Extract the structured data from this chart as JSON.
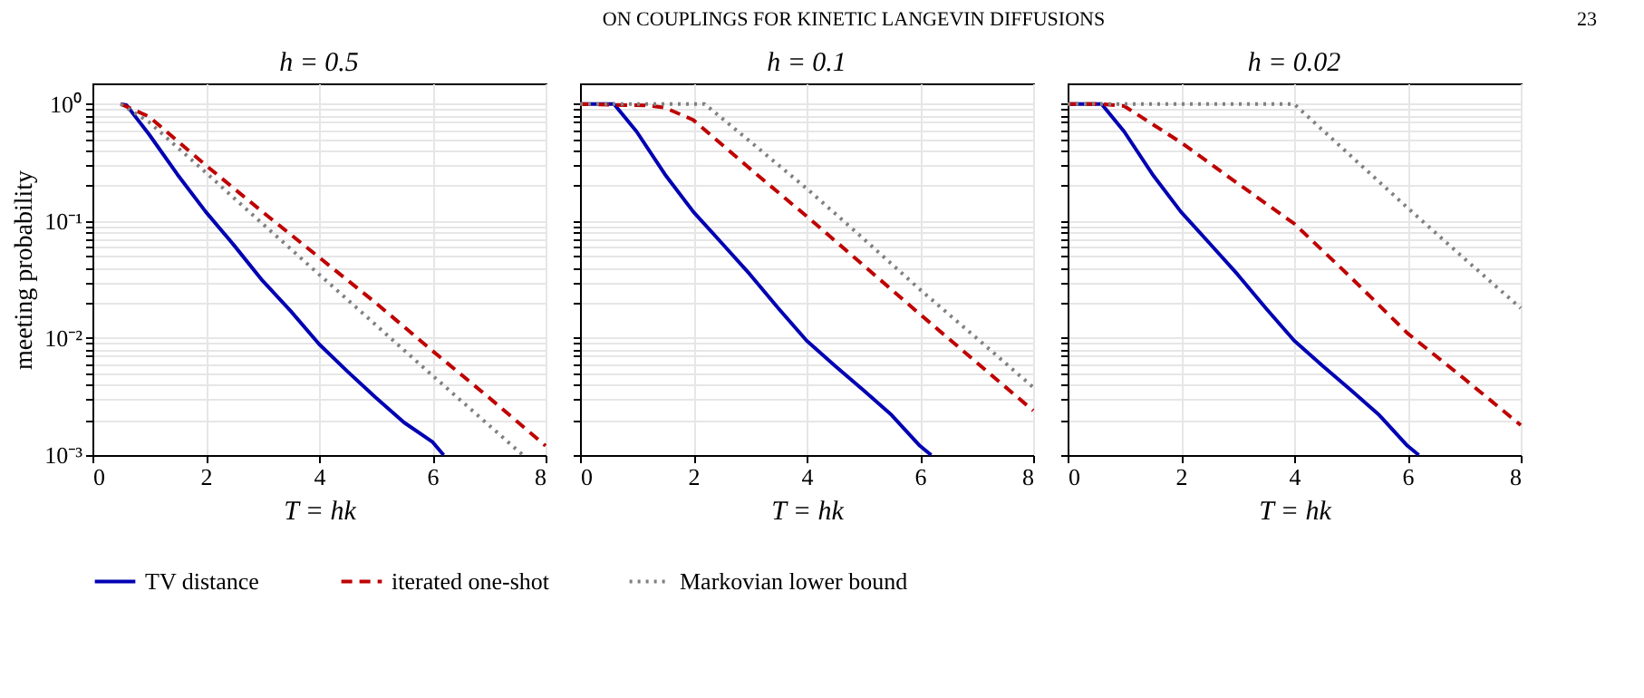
{
  "chart_data": [
    {
      "type": "line",
      "title": "h = 0.5",
      "xlabel": "T = hk",
      "ylabel": "meeting probability",
      "log": true,
      "grid": true,
      "legend": "bottom",
      "annotations": [
        "ON COUPLINGS FOR KINETIC LANGEVIN DIFFUSIONS",
        "23"
      ],
      "xlim": [
        0,
        8
      ],
      "xticks": [
        0,
        2,
        4,
        6,
        8
      ],
      "ylim": [
        0.001,
        1.5
      ],
      "yticks": [
        {
          "value": 0.001,
          "label": "10⁻³"
        },
        {
          "value": 0.002,
          "label": null
        },
        {
          "value": 0.003,
          "label": null
        },
        {
          "value": 0.004,
          "label": null
        },
        {
          "value": 0.005,
          "label": null
        },
        {
          "value": 0.006,
          "label": null
        },
        {
          "value": 0.007,
          "label": null
        },
        {
          "value": 0.008,
          "label": null
        },
        {
          "value": 0.009,
          "label": null
        },
        {
          "value": 0.01,
          "label": "10⁻²"
        },
        {
          "value": 0.02,
          "label": null
        },
        {
          "value": 0.03,
          "label": null
        },
        {
          "value": 0.04,
          "label": null
        },
        {
          "value": 0.05,
          "label": null
        },
        {
          "value": 0.06,
          "label": null
        },
        {
          "value": 0.07,
          "label": null
        },
        {
          "value": 0.08,
          "label": null
        },
        {
          "value": 0.09,
          "label": null
        },
        {
          "value": 0.1,
          "label": "10⁻¹"
        },
        {
          "value": 0.2,
          "label": null
        },
        {
          "value": 0.3,
          "label": null
        },
        {
          "value": 0.4,
          "label": null
        },
        {
          "value": 0.5,
          "label": null
        },
        {
          "value": 0.6,
          "label": null
        },
        {
          "value": 0.7,
          "label": null
        },
        {
          "value": 0.8,
          "label": null
        },
        {
          "value": 0.9,
          "label": null
        },
        {
          "value": 1,
          "label": "10⁰"
        }
      ],
      "series": [
        {
          "name": "TV distance",
          "color": "#0000b3",
          "line_style": "solid",
          "x": [
            0.5,
            0.6,
            1,
            1.5,
            2,
            2.5,
            3,
            3.5,
            4,
            4.5,
            5,
            5.5,
            6,
            6.2
          ],
          "values": [
            1,
            0.98,
            0.55,
            0.25,
            0.12,
            0.062,
            0.031,
            0.017,
            0.0089,
            0.0052,
            0.0031,
            0.0019,
            0.0013,
            0.001
          ]
        },
        {
          "name": "iterated one-shot",
          "color": "#bf0000",
          "line_style": "dashed",
          "x": [
            0.5,
            1,
            2,
            3,
            4,
            5,
            6,
            7,
            8
          ],
          "values": [
            1,
            0.78,
            0.3,
            0.12,
            0.049,
            0.02,
            0.0078,
            0.0031,
            0.0012
          ]
        },
        {
          "name": "Markovian lower bound",
          "color": "#808080",
          "line_style": "dotted",
          "x": [
            0.5,
            1,
            2,
            3,
            4,
            5,
            6,
            7,
            7.6
          ],
          "values": [
            1,
            0.7,
            0.26,
            0.095,
            0.035,
            0.013,
            0.0048,
            0.0018,
            0.001
          ]
        }
      ]
    },
    {
      "type": "line",
      "title": "h = 0.1",
      "xlabel": "T = hk",
      "log": true,
      "grid": true,
      "tick_labels": "x",
      "xlim": [
        0,
        8
      ],
      "xticks": [
        0,
        2,
        4,
        6,
        8
      ],
      "ylim": [
        0.001,
        1.5
      ],
      "yticks": [
        {
          "value": 0.001,
          "label": null
        },
        {
          "value": 0.002,
          "label": null
        },
        {
          "value": 0.003,
          "label": null
        },
        {
          "value": 0.004,
          "label": null
        },
        {
          "value": 0.005,
          "label": null
        },
        {
          "value": 0.006,
          "label": null
        },
        {
          "value": 0.007,
          "label": null
        },
        {
          "value": 0.008,
          "label": null
        },
        {
          "value": 0.009,
          "label": null
        },
        {
          "value": 0.01,
          "label": null
        },
        {
          "value": 0.02,
          "label": null
        },
        {
          "value": 0.03,
          "label": null
        },
        {
          "value": 0.04,
          "label": null
        },
        {
          "value": 0.05,
          "label": null
        },
        {
          "value": 0.06,
          "label": null
        },
        {
          "value": 0.07,
          "label": null
        },
        {
          "value": 0.08,
          "label": null
        },
        {
          "value": 0.09,
          "label": null
        },
        {
          "value": 0.1,
          "label": null
        },
        {
          "value": 0.2,
          "label": null
        },
        {
          "value": 0.3,
          "label": null
        },
        {
          "value": 0.4,
          "label": null
        },
        {
          "value": 0.5,
          "label": null
        },
        {
          "value": 0.6,
          "label": null
        },
        {
          "value": 0.7,
          "label": null
        },
        {
          "value": 0.8,
          "label": null
        },
        {
          "value": 0.9,
          "label": null
        },
        {
          "value": 1,
          "label": null
        }
      ],
      "series": [
        {
          "name": "TV distance",
          "color": "#0000b3",
          "line_style": "solid",
          "x": [
            0,
            0.6,
            1,
            1.5,
            2,
            2.5,
            3,
            3.5,
            4,
            4.5,
            5,
            5.5,
            6,
            6.2
          ],
          "values": [
            1,
            1,
            0.58,
            0.25,
            0.12,
            0.065,
            0.035,
            0.018,
            0.0095,
            0.0058,
            0.0036,
            0.0022,
            0.0012,
            0.001
          ]
        },
        {
          "name": "iterated one-shot",
          "color": "#bf0000",
          "line_style": "dashed",
          "x": [
            0,
            1.2,
            1.5,
            2,
            3,
            4,
            5,
            6,
            7,
            8
          ],
          "values": [
            1,
            0.97,
            0.93,
            0.73,
            0.28,
            0.11,
            0.042,
            0.016,
            0.0062,
            0.0024
          ]
        },
        {
          "name": "Markovian lower bound",
          "color": "#808080",
          "line_style": "dotted",
          "x": [
            0,
            2.2,
            3,
            4,
            5,
            6,
            7,
            8
          ],
          "values": [
            1,
            1,
            0.48,
            0.19,
            0.071,
            0.026,
            0.01,
            0.0038
          ]
        }
      ]
    },
    {
      "type": "line",
      "title": "h = 0.02",
      "xlabel": "T = hk",
      "log": true,
      "grid": true,
      "tick_labels": "x",
      "xlim": [
        0,
        8
      ],
      "xticks": [
        0,
        2,
        4,
        6,
        8
      ],
      "ylim": [
        0.001,
        1.5
      ],
      "yticks": [
        {
          "value": 0.001,
          "label": null
        },
        {
          "value": 0.002,
          "label": null
        },
        {
          "value": 0.003,
          "label": null
        },
        {
          "value": 0.004,
          "label": null
        },
        {
          "value": 0.005,
          "label": null
        },
        {
          "value": 0.006,
          "label": null
        },
        {
          "value": 0.007,
          "label": null
        },
        {
          "value": 0.008,
          "label": null
        },
        {
          "value": 0.009,
          "label": null
        },
        {
          "value": 0.01,
          "label": null
        },
        {
          "value": 0.02,
          "label": null
        },
        {
          "value": 0.03,
          "label": null
        },
        {
          "value": 0.04,
          "label": null
        },
        {
          "value": 0.05,
          "label": null
        },
        {
          "value": 0.06,
          "label": null
        },
        {
          "value": 0.07,
          "label": null
        },
        {
          "value": 0.08,
          "label": null
        },
        {
          "value": 0.09,
          "label": null
        },
        {
          "value": 0.1,
          "label": null
        },
        {
          "value": 0.2,
          "label": null
        },
        {
          "value": 0.3,
          "label": null
        },
        {
          "value": 0.4,
          "label": null
        },
        {
          "value": 0.5,
          "label": null
        },
        {
          "value": 0.6,
          "label": null
        },
        {
          "value": 0.7,
          "label": null
        },
        {
          "value": 0.8,
          "label": null
        },
        {
          "value": 0.9,
          "label": null
        },
        {
          "value": 1,
          "label": null
        }
      ],
      "series": [
        {
          "name": "TV distance",
          "color": "#0000b3",
          "line_style": "solid",
          "x": [
            0,
            0.6,
            1,
            1.5,
            2,
            2.5,
            3,
            3.5,
            4,
            4.5,
            5,
            5.5,
            6,
            6.2
          ],
          "values": [
            1,
            1,
            0.58,
            0.25,
            0.12,
            0.065,
            0.035,
            0.018,
            0.0095,
            0.0058,
            0.0036,
            0.0022,
            0.0012,
            0.001
          ]
        },
        {
          "name": "iterated one-shot",
          "color": "#bf0000",
          "line_style": "dashed",
          "x": [
            0,
            0.6,
            1,
            2,
            3,
            4,
            5,
            6,
            7,
            8
          ],
          "values": [
            1,
            1,
            0.96,
            0.47,
            0.21,
            0.095,
            0.033,
            0.011,
            0.0045,
            0.0018
          ]
        },
        {
          "name": "Markovian lower bound",
          "color": "#808080",
          "line_style": "dotted",
          "x": [
            0,
            4,
            5,
            6,
            7,
            8
          ],
          "values": [
            1,
            1,
            0.36,
            0.13,
            0.048,
            0.018
          ]
        }
      ]
    }
  ]
}
